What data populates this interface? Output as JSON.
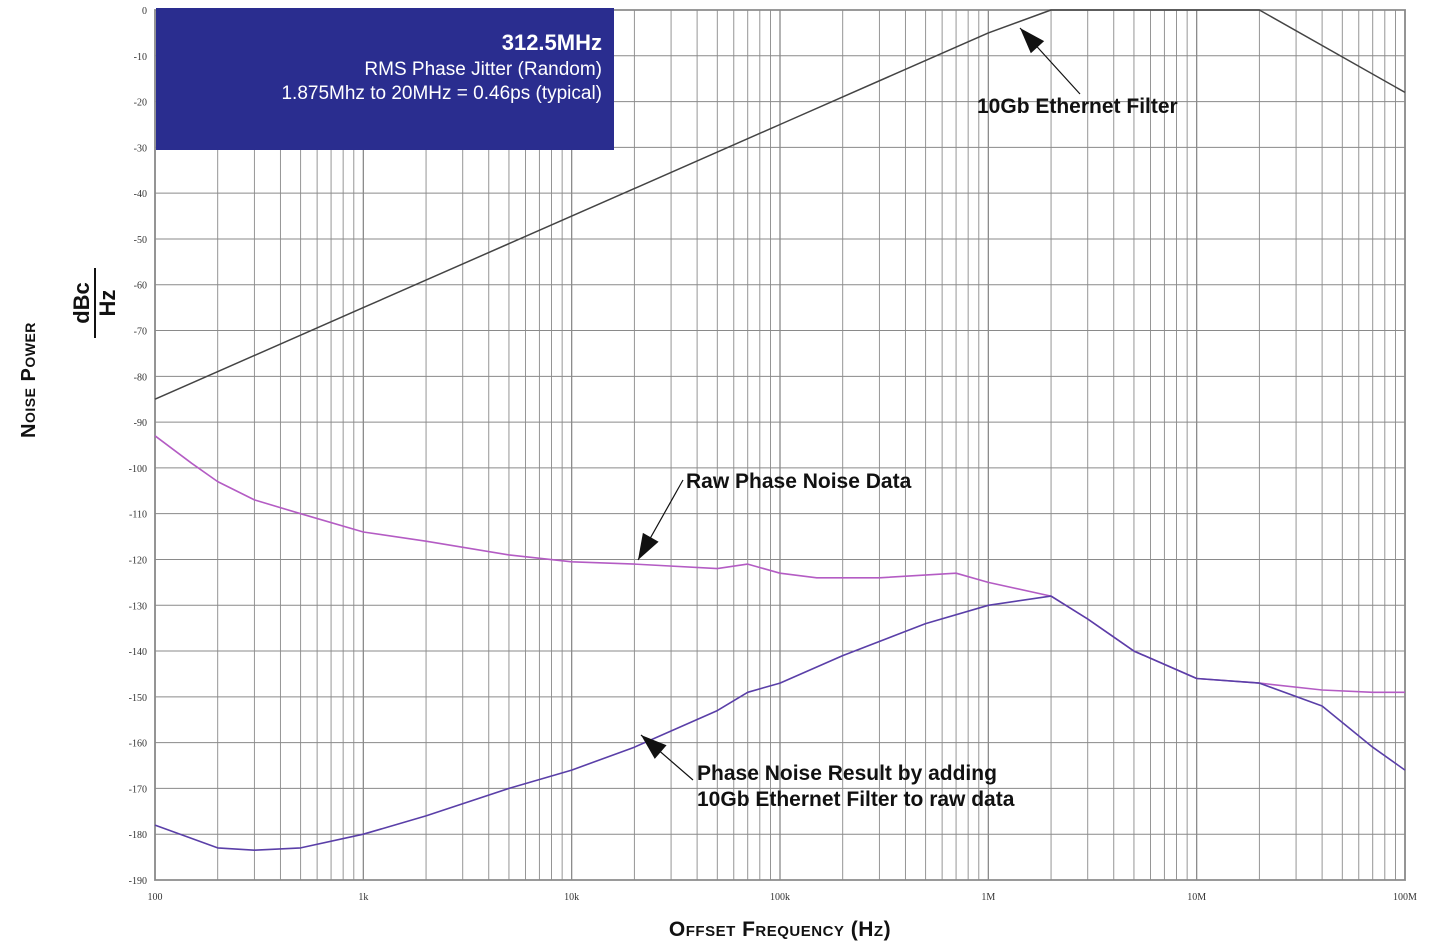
{
  "chart_data": {
    "type": "line",
    "xscale": "log",
    "xlim": [
      100,
      100000000
    ],
    "ylim": [
      -190,
      0
    ],
    "grid": true,
    "xlabel": "Offset Frequency (Hz)",
    "ylabel": "Noise Power",
    "ylabel_unit_num": "dBc",
    "ylabel_unit_den": "Hz",
    "x_ticks": [
      100,
      1000,
      10000,
      100000,
      1000000,
      10000000,
      100000000
    ],
    "x_tick_labels": [
      "100",
      "1k",
      "10k",
      "100k",
      "1M",
      "10M",
      "100M"
    ],
    "y_ticks": [
      0,
      -10,
      -20,
      -30,
      -40,
      -50,
      -60,
      -70,
      -80,
      -90,
      -100,
      -110,
      -120,
      -130,
      -140,
      -150,
      -160,
      -170,
      -180,
      -190
    ],
    "y_tick_labels": [
      "0",
      "-10",
      "-20",
      "-30",
      "-40",
      "-50",
      "-60",
      "-70",
      "-80",
      "-90",
      "-100",
      "-110",
      "-120",
      "-130",
      "-140",
      "-150",
      "-160",
      "-170",
      "-180",
      "-190"
    ],
    "series": [
      {
        "label": "10Gb Ethernet Filter",
        "color": "#444444",
        "x": [
          100,
          1000,
          10000,
          100000,
          1000000,
          2000000,
          20000000,
          100000000
        ],
        "y": [
          -85,
          -65,
          -45,
          -25,
          -5,
          0,
          0,
          -18
        ]
      },
      {
        "label": "Raw Phase Noise Data",
        "color": "#b45cc4",
        "x": [
          100,
          150,
          200,
          300,
          500,
          1000,
          2000,
          5000,
          10000,
          20000,
          50000,
          70000,
          100000,
          150000,
          300000,
          700000,
          1000000,
          2000000,
          3000000,
          5000000,
          10000000,
          20000000,
          40000000,
          70000000,
          100000000
        ],
        "y": [
          -93,
          -99,
          -103,
          -107,
          -110,
          -114,
          -116,
          -119,
          -120.5,
          -121,
          -122,
          -121,
          -123,
          -124,
          -124,
          -123,
          -125,
          -128,
          -133,
          -140,
          -146,
          -147,
          -148.5,
          -149,
          -149
        ]
      },
      {
        "label": "Phase Noise Result by adding 10Gb Ethernet Filter to raw data",
        "color": "#5a3fa8",
        "x": [
          100,
          200,
          300,
          500,
          1000,
          2000,
          5000,
          10000,
          20000,
          50000,
          70000,
          100000,
          200000,
          500000,
          1000000,
          2000000,
          3000000,
          5000000,
          10000000,
          20000000,
          40000000,
          70000000,
          100000000
        ],
        "y": [
          -178,
          -183,
          -183.5,
          -183,
          -180,
          -176,
          -170,
          -166,
          -161,
          -153,
          -149,
          -147,
          -141,
          -134,
          -130,
          -128,
          -133,
          -140,
          -146,
          -147,
          -152,
          -161,
          -166
        ]
      }
    ]
  },
  "infobox": {
    "freq": "312.5MHz",
    "line1": "RMS Phase Jitter  (Random)",
    "line2": "1.875Mhz to 20MHz = 0.46ps (typical)"
  },
  "annotations": {
    "filter": "10Gb Ethernet Filter",
    "raw": "Raw Phase Noise Data",
    "result1": "Phase Noise Result by adding",
    "result2": "10Gb Ethernet Filter to raw data"
  },
  "colors": {
    "grid": "#8a8a8a",
    "infobox_bg": "#2a2d8f"
  }
}
